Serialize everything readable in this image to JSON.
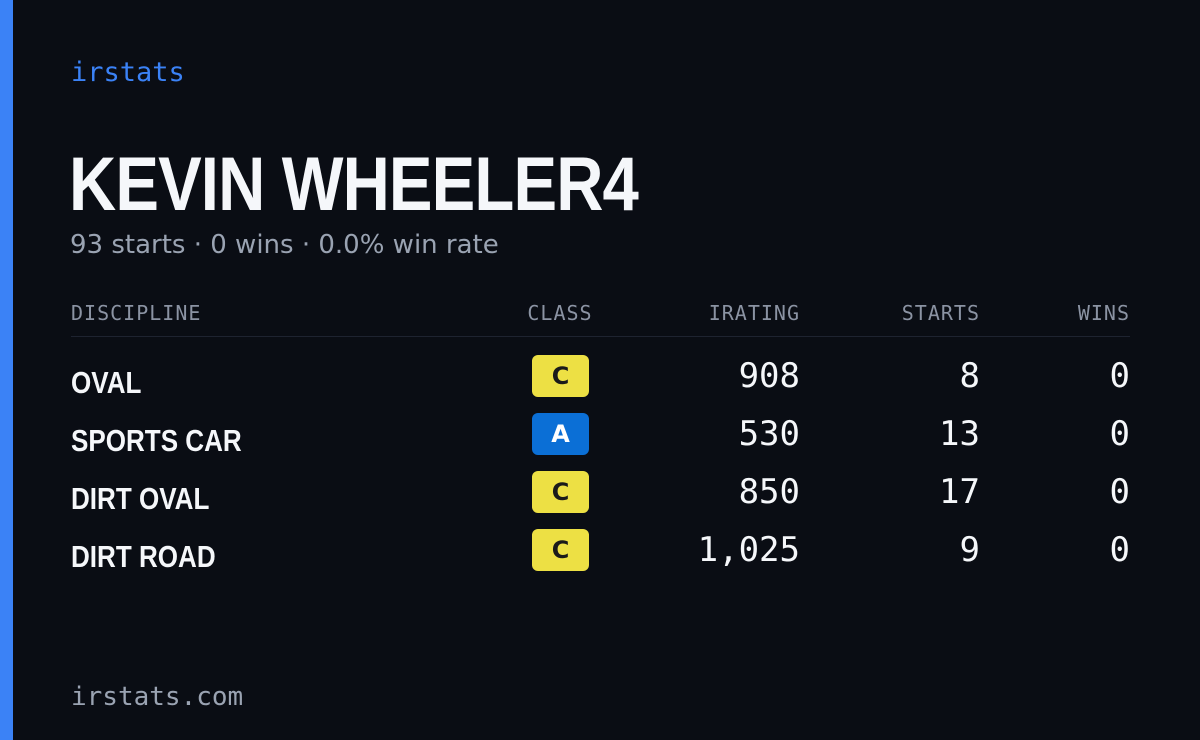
{
  "brand": "irstats",
  "driver": {
    "name": "KEVIN WHEELER4",
    "summary": "93 starts · 0 wins · 0.0% win rate"
  },
  "table": {
    "headers": {
      "discipline": "DISCIPLINE",
      "class": "CLASS",
      "irating": "IRATING",
      "starts": "STARTS",
      "wins": "WINS"
    },
    "rows": [
      {
        "discipline": "OVAL",
        "class": "C",
        "irating": "908",
        "starts": "8",
        "wins": "0"
      },
      {
        "discipline": "SPORTS CAR",
        "class": "A",
        "irating": "530",
        "starts": "13",
        "wins": "0"
      },
      {
        "discipline": "DIRT OVAL",
        "class": "C",
        "irating": "850",
        "starts": "17",
        "wins": "0"
      },
      {
        "discipline": "DIRT ROAD",
        "class": "C",
        "irating": "1,025",
        "starts": "9",
        "wins": "0"
      }
    ]
  },
  "class_colors": {
    "A": {
      "bg": "#0b6fd6",
      "fg": "#ffffff"
    },
    "C": {
      "bg": "#ede044",
      "fg": "#1a1a1a"
    }
  },
  "colors": {
    "accent": "#3b82f6",
    "background": "#0a0d14",
    "text": "#f5f7fa",
    "muted": "#9aa3b2"
  },
  "footer": "irstats.com"
}
